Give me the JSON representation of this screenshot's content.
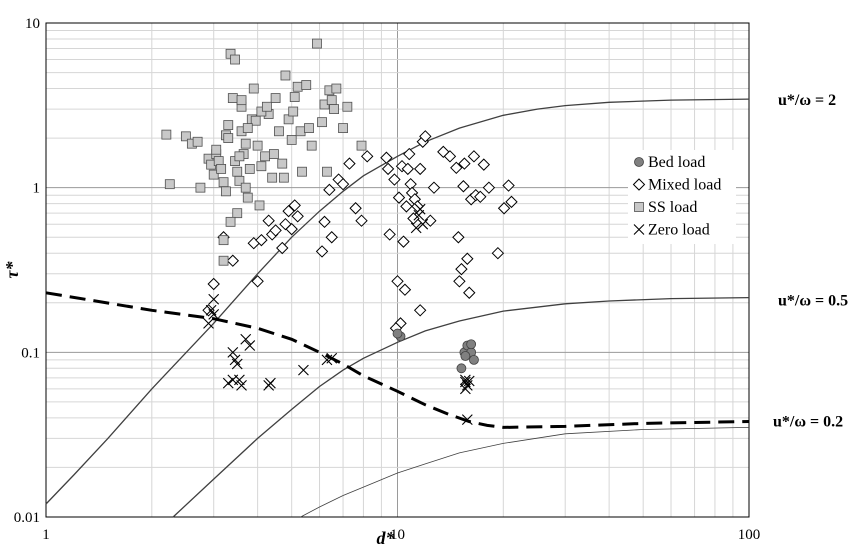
{
  "chart_data": {
    "type": "scatter",
    "title": "",
    "xlabel": "d*",
    "ylabel": "τ*",
    "xscale": "log",
    "yscale": "log",
    "xlim": [
      1,
      100
    ],
    "ylim": [
      0.01,
      10
    ],
    "x_ticks": [
      "1",
      "10",
      "100"
    ],
    "y_ticks": [
      "0.01",
      "0.1",
      "1",
      "10"
    ],
    "grid": true,
    "legend_position": "right-upper",
    "series": [
      {
        "name": "Bed load",
        "marker": "circle",
        "color": "#808080",
        "points": [
          [
            10.2,
            0.125
          ],
          [
            15.2,
            0.08
          ],
          [
            15.5,
            0.1
          ],
          [
            15.8,
            0.11
          ],
          [
            16.2,
            0.1
          ],
          [
            16.5,
            0.09
          ],
          [
            16.2,
            0.112
          ],
          [
            15.6,
            0.095
          ],
          [
            10.0,
            0.13
          ]
        ]
      },
      {
        "name": "Mixed load",
        "marker": "diamond",
        "color": "#ffffff",
        "points": [
          [
            2.9,
            0.18
          ],
          [
            3.0,
            0.26
          ],
          [
            3.2,
            0.5
          ],
          [
            3.4,
            0.36
          ],
          [
            3.9,
            0.46
          ],
          [
            4.0,
            0.27
          ],
          [
            4.1,
            0.48
          ],
          [
            4.4,
            0.52
          ],
          [
            4.3,
            0.63
          ],
          [
            4.5,
            0.55
          ],
          [
            4.7,
            0.43
          ],
          [
            4.8,
            0.6
          ],
          [
            5.0,
            0.56
          ],
          [
            4.9,
            0.72
          ],
          [
            5.1,
            0.78
          ],
          [
            5.2,
            0.67
          ],
          [
            6.1,
            0.41
          ],
          [
            6.2,
            0.62
          ],
          [
            6.4,
            0.97
          ],
          [
            6.5,
            0.5
          ],
          [
            6.8,
            1.12
          ],
          [
            7.0,
            1.05
          ],
          [
            7.3,
            1.4
          ],
          [
            7.6,
            0.75
          ],
          [
            7.9,
            0.63
          ],
          [
            8.2,
            1.55
          ],
          [
            9.3,
            1.52
          ],
          [
            9.5,
            0.52
          ],
          [
            9.8,
            1.12
          ],
          [
            10.0,
            0.27
          ],
          [
            10.1,
            0.87
          ],
          [
            10.3,
            1.35
          ],
          [
            10.4,
            0.47
          ],
          [
            10.5,
            0.24
          ],
          [
            10.6,
            0.77
          ],
          [
            10.7,
            1.3
          ],
          [
            10.8,
            1.6
          ],
          [
            10.9,
            1.05
          ],
          [
            11.0,
            0.93
          ],
          [
            11.1,
            0.65
          ],
          [
            11.2,
            0.85
          ],
          [
            11.4,
            0.77
          ],
          [
            11.6,
            1.3
          ],
          [
            11.8,
            1.9
          ],
          [
            12.0,
            2.05
          ],
          [
            12.4,
            0.63
          ],
          [
            12.7,
            1.0
          ],
          [
            13.5,
            1.65
          ],
          [
            14.1,
            1.55
          ],
          [
            14.7,
            1.32
          ],
          [
            14.9,
            0.5
          ],
          [
            15.0,
            0.27
          ],
          [
            15.2,
            0.32
          ],
          [
            15.4,
            1.02
          ],
          [
            15.5,
            1.4
          ],
          [
            15.8,
            0.37
          ],
          [
            16.2,
            0.85
          ],
          [
            16.5,
            1.55
          ],
          [
            16.7,
            0.9
          ],
          [
            17.2,
            0.88
          ],
          [
            17.6,
            1.38
          ],
          [
            18.2,
            1.0
          ],
          [
            19.3,
            0.4
          ],
          [
            20.1,
            0.75
          ],
          [
            20.7,
            1.03
          ],
          [
            21.1,
            0.82
          ],
          [
            9.4,
            1.3
          ],
          [
            10.2,
            0.15
          ],
          [
            11.6,
            0.18
          ],
          [
            9.9,
            0.14
          ],
          [
            16.0,
            0.23
          ]
        ]
      },
      {
        "name": "SS load",
        "marker": "square",
        "color": "#c8c8c8",
        "points": [
          [
            2.2,
            2.1
          ],
          [
            2.25,
            1.05
          ],
          [
            2.5,
            2.05
          ],
          [
            2.6,
            1.85
          ],
          [
            2.7,
            1.9
          ],
          [
            2.75,
            1.0
          ],
          [
            2.9,
            1.5
          ],
          [
            2.95,
            1.38
          ],
          [
            3.0,
            1.2
          ],
          [
            3.05,
            1.6
          ],
          [
            3.1,
            1.45
          ],
          [
            3.15,
            1.3
          ],
          [
            3.2,
            0.48
          ],
          [
            3.2,
            1.08
          ],
          [
            3.25,
            2.08
          ],
          [
            3.3,
            2.4
          ],
          [
            3.35,
            6.5
          ],
          [
            3.4,
            3.5
          ],
          [
            3.45,
            6.0
          ],
          [
            3.45,
            1.45
          ],
          [
            3.5,
            1.25
          ],
          [
            3.55,
            1.1
          ],
          [
            3.6,
            2.2
          ],
          [
            3.6,
            3.1
          ],
          [
            3.65,
            1.6
          ],
          [
            3.7,
            1.0
          ],
          [
            3.75,
            0.87
          ],
          [
            3.8,
            1.3
          ],
          [
            3.85,
            2.6
          ],
          [
            3.9,
            4.0
          ],
          [
            3.95,
            2.55
          ],
          [
            4.0,
            1.8
          ],
          [
            4.05,
            0.78
          ],
          [
            4.1,
            1.35
          ],
          [
            4.2,
            1.55
          ],
          [
            4.3,
            2.8
          ],
          [
            4.4,
            1.15
          ],
          [
            4.5,
            3.5
          ],
          [
            4.6,
            2.2
          ],
          [
            4.7,
            1.4
          ],
          [
            4.8,
            4.8
          ],
          [
            4.9,
            2.6
          ],
          [
            5.0,
            1.95
          ],
          [
            5.05,
            2.9
          ],
          [
            5.1,
            3.55
          ],
          [
            5.2,
            4.1
          ],
          [
            5.3,
            2.2
          ],
          [
            5.35,
            1.25
          ],
          [
            5.5,
            4.2
          ],
          [
            5.6,
            2.3
          ],
          [
            5.7,
            1.8
          ],
          [
            5.9,
            7.5
          ],
          [
            6.1,
            2.5
          ],
          [
            6.2,
            3.2
          ],
          [
            6.3,
            1.25
          ],
          [
            6.4,
            3.9
          ],
          [
            6.5,
            3.4
          ],
          [
            6.6,
            3.0
          ],
          [
            6.7,
            4.0
          ],
          [
            7.0,
            2.3
          ],
          [
            7.2,
            3.1
          ],
          [
            7.9,
            1.8
          ],
          [
            3.2,
            0.36
          ],
          [
            3.25,
            0.95
          ],
          [
            3.5,
            0.7
          ],
          [
            3.35,
            0.62
          ],
          [
            3.7,
            1.85
          ],
          [
            4.1,
            2.9
          ],
          [
            3.6,
            3.4
          ],
          [
            4.25,
            3.1
          ],
          [
            4.45,
            1.6
          ],
          [
            3.05,
            1.7
          ],
          [
            3.3,
            2.0
          ],
          [
            3.55,
            1.55
          ],
          [
            4.75,
            1.15
          ],
          [
            3.75,
            2.3
          ]
        ]
      },
      {
        "name": "Zero load",
        "marker": "x",
        "color": "#000000",
        "points": [
          [
            2.9,
            0.15
          ],
          [
            2.95,
            0.18
          ],
          [
            3.0,
            0.21
          ],
          [
            3.0,
            0.17
          ],
          [
            3.4,
            0.1
          ],
          [
            3.45,
            0.09
          ],
          [
            3.5,
            0.085
          ],
          [
            3.3,
            0.065
          ],
          [
            3.4,
            0.068
          ],
          [
            3.55,
            0.068
          ],
          [
            3.6,
            0.063
          ],
          [
            3.7,
            0.12
          ],
          [
            3.8,
            0.11
          ],
          [
            4.3,
            0.063
          ],
          [
            4.35,
            0.065
          ],
          [
            5.4,
            0.078
          ],
          [
            6.3,
            0.09
          ],
          [
            6.5,
            0.092
          ],
          [
            11.3,
            0.57
          ],
          [
            11.5,
            0.68
          ],
          [
            11.6,
            0.74
          ],
          [
            11.8,
            0.6
          ],
          [
            15.6,
            0.066
          ],
          [
            15.8,
            0.063
          ],
          [
            15.6,
            0.068
          ],
          [
            15.6,
            0.06
          ],
          [
            15.8,
            0.039
          ],
          [
            16.0,
            0.067
          ]
        ]
      }
    ],
    "curves": [
      {
        "label": "u*/ω = 2",
        "style": "solid",
        "color": "#404040",
        "points": [
          [
            1,
            0.012
          ],
          [
            1.2,
            0.018
          ],
          [
            1.5,
            0.03
          ],
          [
            2,
            0.06
          ],
          [
            3,
            0.15
          ],
          [
            4,
            0.3
          ],
          [
            5,
            0.5
          ],
          [
            6,
            0.72
          ],
          [
            7,
            0.95
          ],
          [
            8,
            1.18
          ],
          [
            10,
            1.55
          ],
          [
            12,
            1.9
          ],
          [
            15,
            2.3
          ],
          [
            20,
            2.75
          ],
          [
            25,
            3.0
          ],
          [
            30,
            3.15
          ],
          [
            40,
            3.3
          ],
          [
            60,
            3.4
          ],
          [
            100,
            3.45
          ]
        ]
      },
      {
        "label": "u*/ω = 0.5",
        "style": "solid",
        "color": "#404040",
        "points": [
          [
            2.3,
            0.01
          ],
          [
            3,
            0.017
          ],
          [
            4,
            0.03
          ],
          [
            5,
            0.045
          ],
          [
            6,
            0.062
          ],
          [
            7,
            0.078
          ],
          [
            8,
            0.092
          ],
          [
            10,
            0.115
          ],
          [
            12,
            0.135
          ],
          [
            15,
            0.155
          ],
          [
            20,
            0.178
          ],
          [
            30,
            0.197
          ],
          [
            40,
            0.205
          ],
          [
            60,
            0.212
          ],
          [
            100,
            0.215
          ]
        ]
      },
      {
        "label": "u*/ω = 0.2",
        "style": "solid-thin",
        "color": "#404040",
        "points": [
          [
            5.3,
            0.01
          ],
          [
            6,
            0.0115
          ],
          [
            7,
            0.0135
          ],
          [
            8,
            0.0152
          ],
          [
            10,
            0.0185
          ],
          [
            12,
            0.021
          ],
          [
            15,
            0.0245
          ],
          [
            20,
            0.028
          ],
          [
            30,
            0.032
          ],
          [
            50,
            0.034
          ],
          [
            100,
            0.035
          ]
        ]
      },
      {
        "label": "",
        "style": "dashed",
        "color": "#000000",
        "points": [
          [
            1,
            0.23
          ],
          [
            2,
            0.18
          ],
          [
            3,
            0.16
          ],
          [
            4,
            0.14
          ],
          [
            5,
            0.12
          ],
          [
            6,
            0.1
          ],
          [
            7,
            0.085
          ],
          [
            8,
            0.072
          ],
          [
            10,
            0.058
          ],
          [
            12,
            0.048
          ],
          [
            14,
            0.042
          ],
          [
            16,
            0.038
          ],
          [
            18,
            0.036
          ],
          [
            20,
            0.035
          ],
          [
            30,
            0.0355
          ],
          [
            50,
            0.037
          ],
          [
            100,
            0.038
          ]
        ]
      }
    ]
  }
}
